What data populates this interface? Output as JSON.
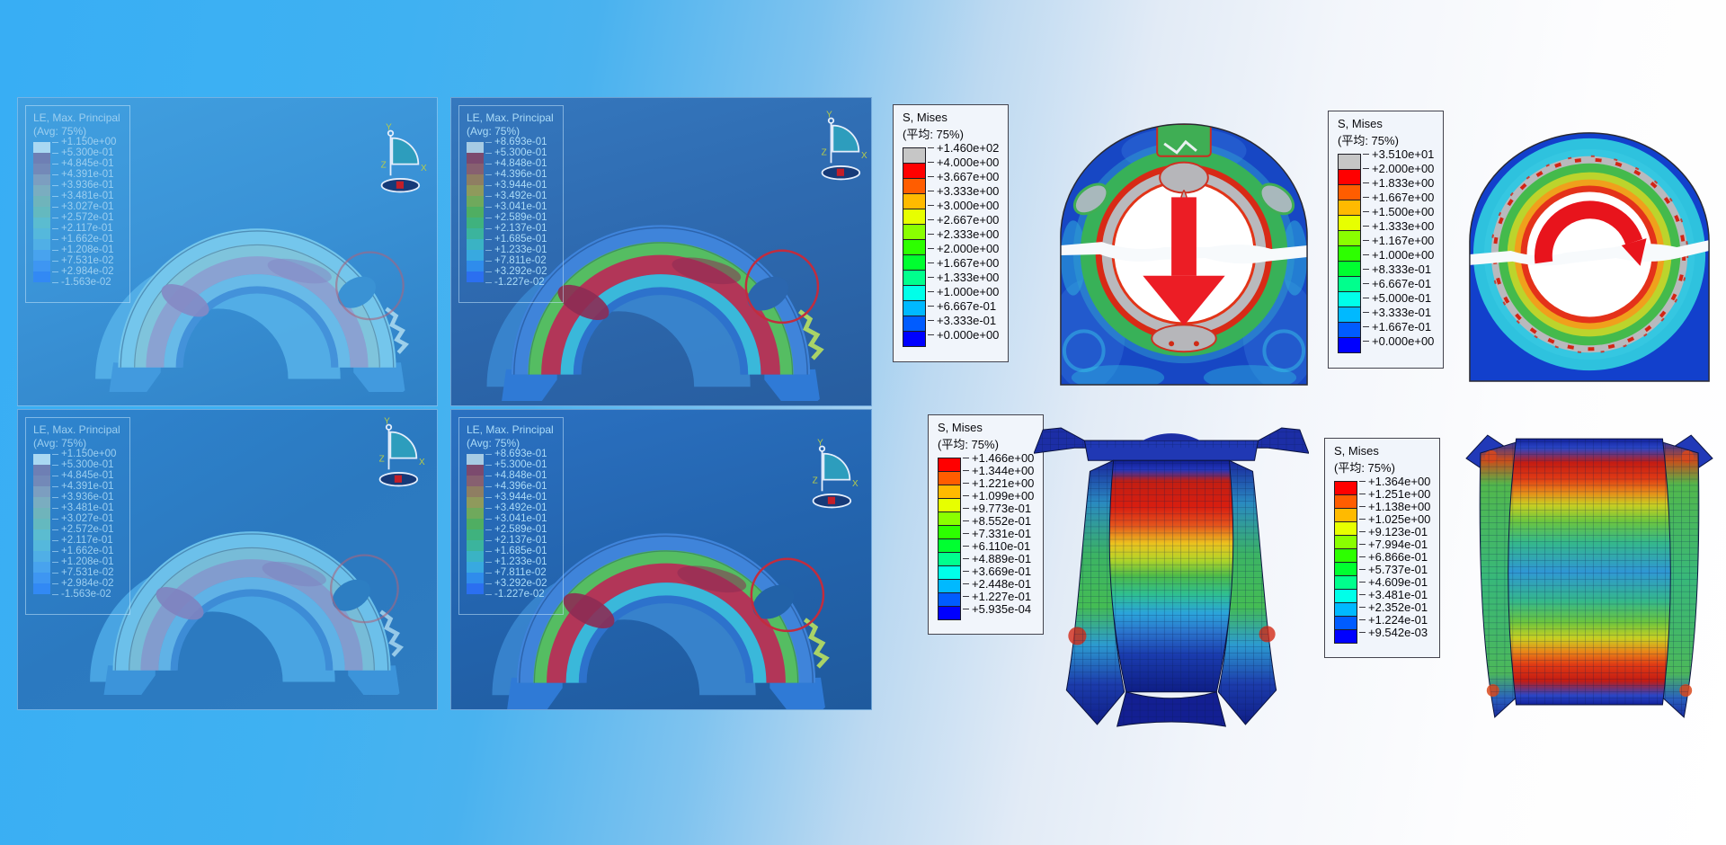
{
  "colors": {
    "arrow_red": "#e8141c",
    "legend_gray": "#c6c6c6",
    "rainbow": [
      "#ff0000",
      "#ff5d00",
      "#ffba00",
      "#e7ff00",
      "#8aff00",
      "#2dff00",
      "#00ff30",
      "#00ff8d",
      "#00ffe9",
      "#00b9ff",
      "#005cff",
      "#0000ff"
    ]
  },
  "left_panels": [
    {
      "id": "top-left",
      "legend": {
        "title": "LE, Max. Principal",
        "subtitle": "(Avg: 75%)",
        "values": [
          "+1.150e+00",
          "+5.300e-01",
          "+4.845e-01",
          "+4.391e-01",
          "+3.936e-01",
          "+3.481e-01",
          "+3.027e-01",
          "+2.572e-01",
          "+2.117e-01",
          "+1.662e-01",
          "+1.208e-01",
          "+7.531e-02",
          "+2.984e-02",
          "-1.563e-02"
        ],
        "swatches": [
          "#a9d8f2",
          "#6e7fb4",
          "#7389b8",
          "#7c9ec0",
          "#7aadc0",
          "#6fb4bb",
          "#64b9bf",
          "#5bbcd0",
          "#55b8dc",
          "#50afe6",
          "#48a3ee",
          "#3e96f2",
          "#3289f4"
        ]
      },
      "triad": {
        "x": "X",
        "y": "Y",
        "z": "Z"
      }
    },
    {
      "id": "top-middle",
      "legend": {
        "title": "LE, Max. Principal",
        "subtitle": "(Avg: 75%)",
        "values": [
          "+8.693e-01",
          "+5.300e-01",
          "+4.848e-01",
          "+4.396e-01",
          "+3.944e-01",
          "+3.492e-01",
          "+3.041e-01",
          "+2.589e-01",
          "+2.137e-01",
          "+1.685e-01",
          "+1.233e-01",
          "+7.811e-02",
          "+3.292e-02",
          "-1.227e-02"
        ],
        "swatches": [
          "#a6cbe4",
          "#7c4a6e",
          "#876070",
          "#8f7e62",
          "#8f9a5c",
          "#6fa95c",
          "#4fae62",
          "#3fb27e",
          "#3bb49d",
          "#3ab3c4",
          "#38a9e0",
          "#2f8cec",
          "#2b6ff0"
        ]
      },
      "triad": {
        "x": "X",
        "y": "Y",
        "z": "Z"
      }
    },
    {
      "id": "bottom-left",
      "legend": {
        "title": "LE, Max. Principal",
        "subtitle": "(Avg: 75%)",
        "values": [
          "+1.150e+00",
          "+5.300e-01",
          "+4.845e-01",
          "+4.391e-01",
          "+3.936e-01",
          "+3.481e-01",
          "+3.027e-01",
          "+2.572e-01",
          "+2.117e-01",
          "+1.662e-01",
          "+1.208e-01",
          "+7.531e-02",
          "+2.984e-02",
          "-1.563e-02"
        ],
        "swatches": [
          "#a9d8f2",
          "#6e7fb4",
          "#7389b8",
          "#7c9ec0",
          "#7aadc0",
          "#6fb4bb",
          "#64b9bf",
          "#5bbcd0",
          "#55b8dc",
          "#50afe6",
          "#48a3ee",
          "#3e96f2",
          "#3289f4"
        ]
      },
      "triad": {
        "x": "X",
        "y": "Y",
        "z": "Z"
      }
    },
    {
      "id": "bottom-middle",
      "legend": {
        "title": "LE, Max. Principal",
        "subtitle": "(Avg: 75%)",
        "values": [
          "+8.693e-01",
          "+5.300e-01",
          "+4.848e-01",
          "+4.396e-01",
          "+3.944e-01",
          "+3.492e-01",
          "+3.041e-01",
          "+2.589e-01",
          "+2.137e-01",
          "+1.685e-01",
          "+1.233e-01",
          "+7.811e-02",
          "+3.292e-02",
          "-1.227e-02"
        ],
        "swatches": [
          "#a6cbe4",
          "#7c4a6e",
          "#876070",
          "#8f7e62",
          "#8f9a5c",
          "#6fa95c",
          "#4fae62",
          "#3fb27e",
          "#3bb49d",
          "#3ab3c4",
          "#38a9e0",
          "#2f8cec",
          "#2b6ff0"
        ]
      },
      "triad": {
        "x": "X",
        "y": "Y",
        "z": "Z"
      }
    }
  ],
  "right_legends": {
    "load": {
      "title": "S, Mises",
      "subtitle": "(平均: 75%)",
      "values": [
        "+1.460e+02",
        "+4.000e+00",
        "+3.667e+00",
        "+3.333e+00",
        "+3.000e+00",
        "+2.667e+00",
        "+2.333e+00",
        "+2.000e+00",
        "+1.667e+00",
        "+1.333e+00",
        "+1.000e+00",
        "+6.667e-01",
        "+3.333e-01",
        "+0.000e+00"
      ],
      "swatches": [
        "#c6c6c6",
        "#ff0000",
        "#ff5d00",
        "#ffba00",
        "#e7ff00",
        "#8aff00",
        "#2dff00",
        "#00ff30",
        "#00ff8d",
        "#00ffe9",
        "#00b9ff",
        "#005cff",
        "#0000ff"
      ]
    },
    "torque": {
      "title": "S, Mises",
      "subtitle": "(平均: 75%)",
      "values": [
        "+3.510e+01",
        "+2.000e+00",
        "+1.833e+00",
        "+1.667e+00",
        "+1.500e+00",
        "+1.333e+00",
        "+1.167e+00",
        "+1.000e+00",
        "+8.333e-01",
        "+6.667e-01",
        "+5.000e-01",
        "+3.333e-01",
        "+1.667e-01",
        "+0.000e+00"
      ],
      "swatches": [
        "#c6c6c6",
        "#ff0000",
        "#ff5d00",
        "#ffba00",
        "#e7ff00",
        "#8aff00",
        "#2dff00",
        "#00ff30",
        "#00ff8d",
        "#00ffe9",
        "#00b9ff",
        "#005cff",
        "#0000ff"
      ]
    },
    "bushing_left": {
      "title": "S, Mises",
      "subtitle": "(平均: 75%)",
      "values": [
        "+1.466e+00",
        "+1.344e+00",
        "+1.221e+00",
        "+1.099e+00",
        "+9.773e-01",
        "+8.552e-01",
        "+7.331e-01",
        "+6.110e-01",
        "+4.889e-01",
        "+3.669e-01",
        "+2.448e-01",
        "+1.227e-01",
        "+5.935e-04"
      ],
      "swatches": [
        "#ff0000",
        "#ff5d00",
        "#ffba00",
        "#e7ff00",
        "#8aff00",
        "#2dff00",
        "#00ff30",
        "#00ff8d",
        "#00ffe9",
        "#00b9ff",
        "#005cff",
        "#0000ff"
      ]
    },
    "bushing_right": {
      "title": "S, Mises",
      "subtitle": "(平均: 75%)",
      "values": [
        "+1.364e+00",
        "+1.251e+00",
        "+1.138e+00",
        "+1.025e+00",
        "+9.123e-01",
        "+7.994e-01",
        "+6.866e-01",
        "+5.737e-01",
        "+4.609e-01",
        "+3.481e-01",
        "+2.352e-01",
        "+1.224e-01",
        "+9.542e-03"
      ],
      "swatches": [
        "#ff0000",
        "#ff5d00",
        "#ffba00",
        "#e7ff00",
        "#8aff00",
        "#2dff00",
        "#00ff30",
        "#00ff8d",
        "#00ffe9",
        "#00b9ff",
        "#005cff",
        "#0000ff"
      ]
    }
  }
}
